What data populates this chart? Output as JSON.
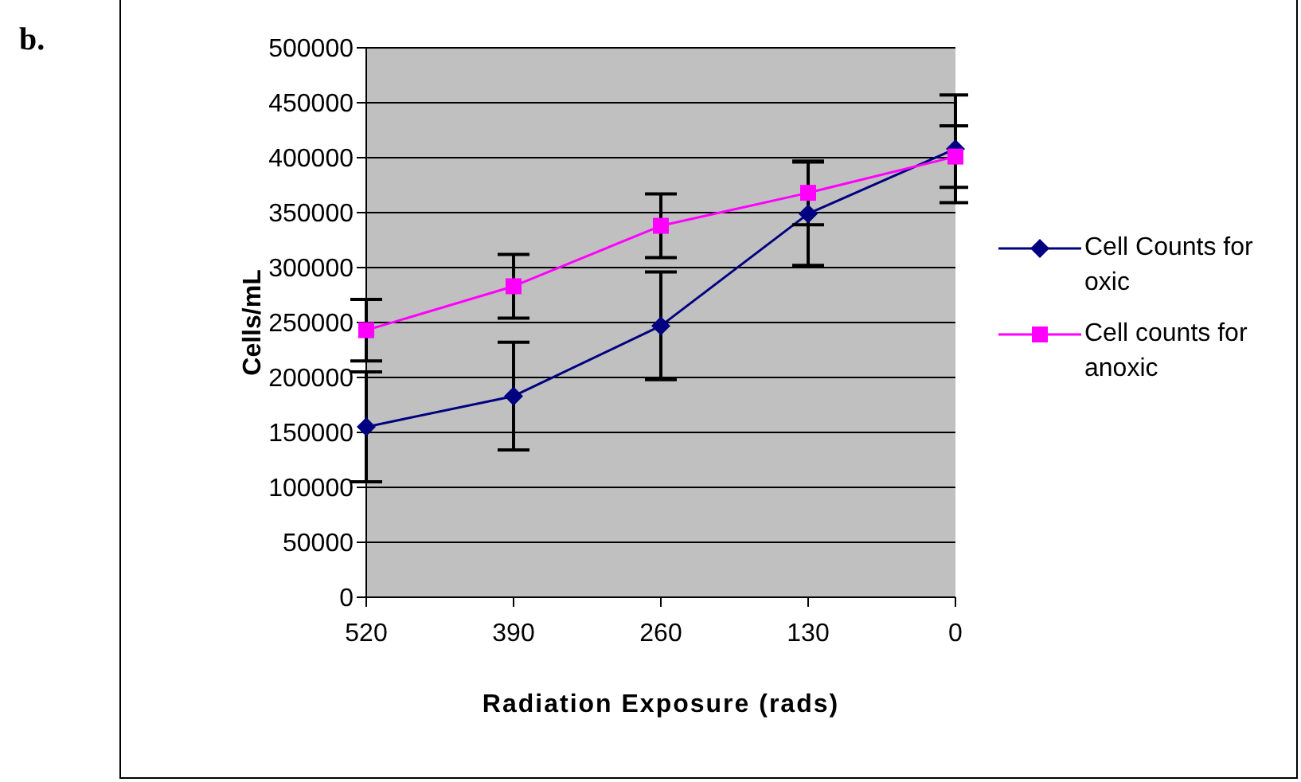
{
  "chart_data": {
    "type": "line",
    "xlabel": "Radiation Exposure (rads)",
    "ylabel": "Cells/mL",
    "annotations": [
      "b."
    ],
    "categories": [
      "520",
      "390",
      "260",
      "130",
      "0"
    ],
    "series": [
      {
        "name": "Cell Counts for oxic",
        "color": "#000080",
        "marker": "diamond",
        "values": [
          155000,
          183000,
          247000,
          349000,
          408000
        ],
        "errors": [
          50000,
          49000,
          49000,
          47000,
          49000
        ]
      },
      {
        "name": "Cell counts for anoxic",
        "color": "#ff00ff",
        "marker": "square",
        "values": [
          243000,
          283000,
          338000,
          368000,
          401000
        ],
        "errors": [
          28000,
          29000,
          29000,
          29000,
          28000
        ]
      }
    ],
    "ylim": [
      0,
      500000
    ],
    "yticks": [
      0,
      50000,
      100000,
      150000,
      200000,
      250000,
      300000,
      350000,
      400000,
      450000,
      500000
    ],
    "grid": "y",
    "legend": "right"
  }
}
